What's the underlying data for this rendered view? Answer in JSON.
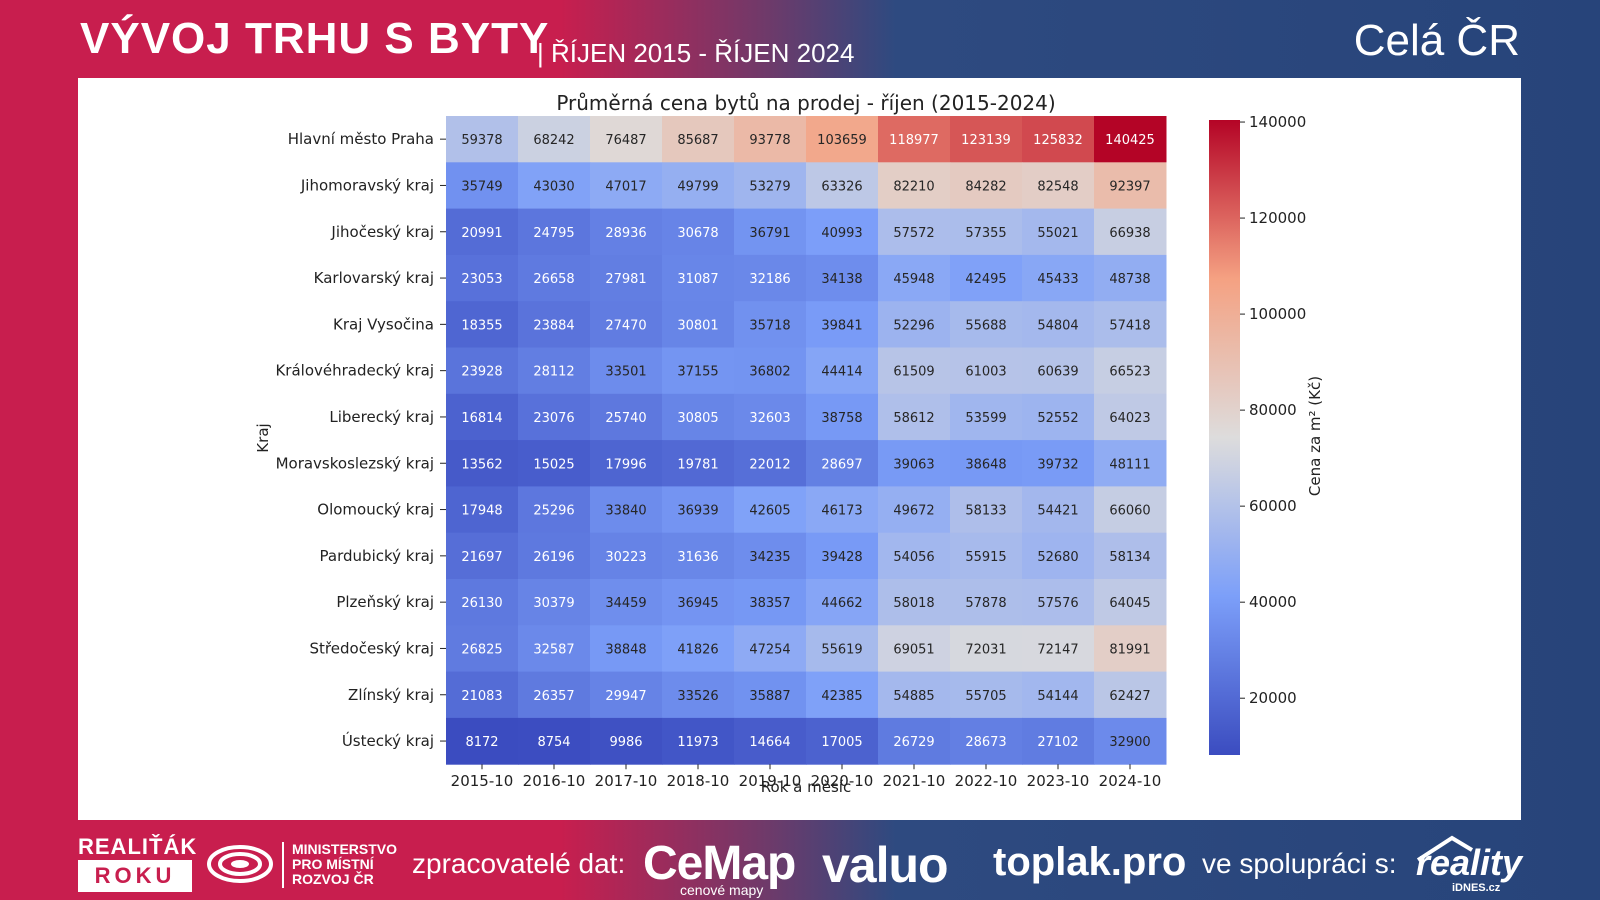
{
  "header": {
    "title": "VÝVOJ TRHU S BYTY",
    "subtitle": "| ŘÍJEN 2015 - ŘÍJEN 2024",
    "region": "Celá ČR"
  },
  "colors": {
    "brand_red": "#c81e4e",
    "brand_blue": "#27447a"
  },
  "chart_data": {
    "type": "heatmap",
    "title": "Průměrná cena bytů na prodej - říjen (2015-2024)",
    "xlabel": "Rok a měsíc",
    "ylabel": "Kraj",
    "colorbar_label": "Cena za m² (Kč)",
    "colormap": "coolwarm",
    "vmin": 8172,
    "vmax": 140425,
    "colorbar_ticks": [
      20000,
      40000,
      60000,
      80000,
      100000,
      120000,
      140000
    ],
    "x": [
      "2015-10",
      "2016-10",
      "2017-10",
      "2018-10",
      "2019-10",
      "2020-10",
      "2021-10",
      "2022-10",
      "2023-10",
      "2024-10"
    ],
    "y": [
      "Hlavní město Praha",
      "Jihomoravský kraj",
      "Jihočeský kraj",
      "Karlovarský kraj",
      "Kraj Vysočina",
      "Královéhradecký kraj",
      "Liberecký kraj",
      "Moravskoslezský kraj",
      "Olomoucký kraj",
      "Pardubický kraj",
      "Plzeňský kraj",
      "Středočeský kraj",
      "Zlínský kraj",
      "Ústecký kraj"
    ],
    "values": [
      [
        59378,
        68242,
        76487,
        85687,
        93778,
        103659,
        118977,
        123139,
        125832,
        140425
      ],
      [
        35749,
        43030,
        47017,
        49799,
        53279,
        63326,
        82210,
        84282,
        82548,
        92397
      ],
      [
        20991,
        24795,
        28936,
        30678,
        36791,
        40993,
        57572,
        57355,
        55021,
        66938
      ],
      [
        23053,
        26658,
        27981,
        31087,
        32186,
        34138,
        45948,
        42495,
        45433,
        48738
      ],
      [
        18355,
        23884,
        27470,
        30801,
        35718,
        39841,
        52296,
        55688,
        54804,
        57418
      ],
      [
        23928,
        28112,
        33501,
        37155,
        36802,
        44414,
        61509,
        61003,
        60639,
        66523
      ],
      [
        16814,
        23076,
        25740,
        30805,
        32603,
        38758,
        58612,
        53599,
        52552,
        64023
      ],
      [
        13562,
        15025,
        17996,
        19781,
        22012,
        28697,
        39063,
        38648,
        39732,
        48111
      ],
      [
        17948,
        25296,
        33840,
        36939,
        42605,
        46173,
        49672,
        58133,
        54421,
        66060
      ],
      [
        21697,
        26196,
        30223,
        31636,
        34235,
        39428,
        54056,
        55915,
        52680,
        58134
      ],
      [
        26130,
        30379,
        34459,
        36945,
        38357,
        44662,
        58018,
        57878,
        57576,
        64045
      ],
      [
        26825,
        32587,
        38848,
        41826,
        47254,
        55619,
        69051,
        72031,
        72147,
        81991
      ],
      [
        21083,
        26357,
        29947,
        33526,
        35887,
        42385,
        54885,
        55705,
        54144,
        62427
      ],
      [
        8172,
        8754,
        9986,
        11973,
        14664,
        17005,
        26729,
        28673,
        27102,
        32900
      ]
    ]
  },
  "footer": {
    "award_top": "REALIŤÁK",
    "award_bottom": "ROKU",
    "ministry": [
      "MINISTERSTVO",
      "PRO MÍSTNÍ",
      "ROZVOJ ČR"
    ],
    "processors_label": "zpracovatelé dat:",
    "cemap": "CeMap",
    "cemap_sub": "cenové mapy",
    "valuo": "valuo",
    "toplak": "toplak.pro",
    "cooperation_label": "ve spolupráci s:",
    "reality": "reality",
    "reality_sub": "iDNES.cz"
  }
}
